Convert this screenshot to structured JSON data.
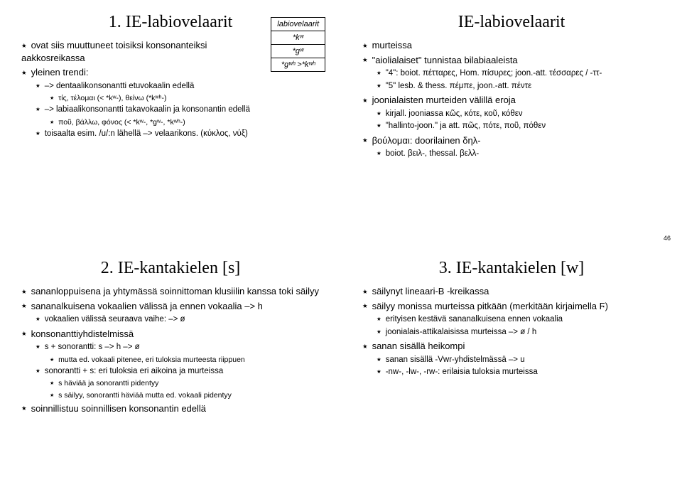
{
  "slides": [
    {
      "title": "1. IE-labiovelaarit",
      "table": {
        "header": "labiovelaarit",
        "rows": [
          "*kʷ",
          "*gʷ",
          "*gʷʰ >*kʷʰ"
        ]
      },
      "items": [
        {
          "lvl": 0,
          "text": "ovat siis muuttuneet toisiksi konsonanteiksi aakkosreikassa",
          "wrap": true
        },
        {
          "lvl": 0,
          "text": "yleinen trendi:",
          "wrap": true
        },
        {
          "lvl": 1,
          "text": "–> dentaalikonsonantti etuvokaalin edellä"
        },
        {
          "lvl": 2,
          "text": "τίς, τέλομαι (< *kʷ-), θείνω (*kʷʰ-)"
        },
        {
          "lvl": 1,
          "text": "–> labiaalikonsonantti takavokaalin ja konsonantin edellä"
        },
        {
          "lvl": 2,
          "text": "ποῦ, βάλλω, φόνος (< *kʷ-, *gʷ-, *kʷʰ-)"
        },
        {
          "lvl": 1,
          "text": "toisaalta esim. /u/:n lähellä –> velaarikons. (κύκλος, νύξ)"
        }
      ]
    },
    {
      "title": "IE-labiovelaarit",
      "pagenum": "46",
      "items": [
        {
          "lvl": 0,
          "text": "murteissa"
        },
        {
          "lvl": 0,
          "text": "\"aiolialaiset\" tunnistaa bilabiaaleista"
        },
        {
          "lvl": 1,
          "text": "\"4\": boiot. πέτταρες, Hom. πίσυρες; joon.-att. τέσσαρες / -ττ-"
        },
        {
          "lvl": 1,
          "text": "\"5\" lesb. & thess. πέμπε, joon.-att. πέντε"
        },
        {
          "lvl": 0,
          "text": "joonialaisten murteiden välillä eroja"
        },
        {
          "lvl": 1,
          "text": "kirjall. jooniassa κῶς, κότε, κοῦ, κόθεν"
        },
        {
          "lvl": 1,
          "text": "\"hallinto-joon.\" ja att. πῶς, πότε, ποῦ, πόθεν"
        },
        {
          "lvl": 0,
          "text": "βούλομαι: doorilainen δηλ-"
        },
        {
          "lvl": 1,
          "text": "boiot. βειλ-, thessal. βελλ-"
        }
      ]
    },
    {
      "title": "2. IE-kantakielen [s]",
      "items": [
        {
          "lvl": 0,
          "text": "sananloppuisena ja yhtymässä soinnittoman klusiilin kanssa toki säilyy"
        },
        {
          "lvl": 0,
          "text": "sananalkuisena vokaalien välissä ja ennen vokaalia –> h"
        },
        {
          "lvl": 1,
          "text": "vokaalien välissä seuraava vaihe: –> ø"
        },
        {
          "lvl": 0,
          "text": "konsonanttiyhdistelmissä"
        },
        {
          "lvl": 1,
          "text": "s + sonorantti: s –> h –> ø"
        },
        {
          "lvl": 2,
          "text": "mutta ed. vokaali pitenee, eri tuloksia murteesta riippuen"
        },
        {
          "lvl": 1,
          "text": "sonorantti + s: eri tuloksia eri aikoina ja murteissa"
        },
        {
          "lvl": 2,
          "text": "s häviää ja sonorantti pidentyy"
        },
        {
          "lvl": 2,
          "text": "s säilyy, sonorantti häviää mutta ed. vokaali pidentyy"
        },
        {
          "lvl": 0,
          "text": "soinnillistuu soinnillisen konsonantin edellä"
        }
      ]
    },
    {
      "title": "3. IE-kantakielen [w]",
      "items": [
        {
          "lvl": 0,
          "text": "säilynyt lineaari-B -kreikassa"
        },
        {
          "lvl": 0,
          "text": "säilyy monissa murteissa pitkään (merkitään kirjaimella Ϝ)"
        },
        {
          "lvl": 1,
          "text": "erityisen kestävä sananalkuisena ennen vokaalia"
        },
        {
          "lvl": 1,
          "text": "joonialais-attikalaisissa murteissa –> ø / h"
        },
        {
          "lvl": 0,
          "text": "sanan sisällä heikompi"
        },
        {
          "lvl": 1,
          "text": "sanan sisällä -Vwr-yhdistelmässä –> u"
        },
        {
          "lvl": 1,
          "text": "-nw-, -lw-, -rw-: erilaisia tuloksia murteissa"
        }
      ]
    }
  ]
}
